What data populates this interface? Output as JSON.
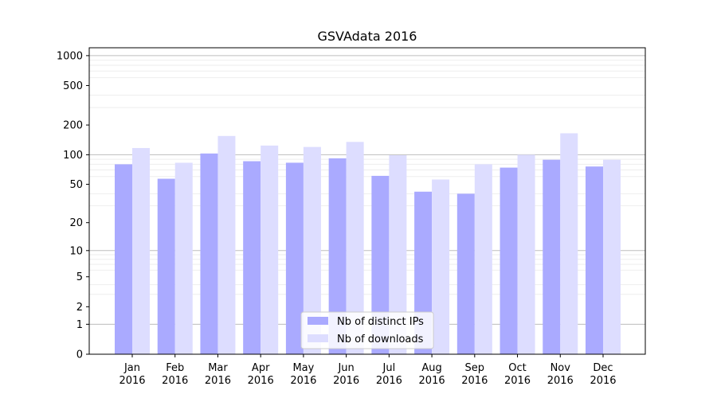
{
  "chart_data": {
    "type": "bar",
    "title": "GSVAdata 2016",
    "xlabel": "",
    "ylabel": "",
    "yscale": "log1p",
    "ylim": [
      0,
      1200
    ],
    "y_ticks": [
      0,
      1,
      2,
      5,
      10,
      20,
      50,
      100,
      200,
      500,
      1000
    ],
    "categories": [
      [
        "Jan",
        "2016"
      ],
      [
        "Feb",
        "2016"
      ],
      [
        "Mar",
        "2016"
      ],
      [
        "Apr",
        "2016"
      ],
      [
        "May",
        "2016"
      ],
      [
        "Jun",
        "2016"
      ],
      [
        "Jul",
        "2016"
      ],
      [
        "Aug",
        "2016"
      ],
      [
        "Sep",
        "2016"
      ],
      [
        "Oct",
        "2016"
      ],
      [
        "Nov",
        "2016"
      ],
      [
        "Dec",
        "2016"
      ]
    ],
    "series": [
      {
        "name": "Nb of distinct IPs",
        "color": "#aaaaff",
        "values": [
          80,
          57,
          103,
          86,
          83,
          92,
          61,
          42,
          40,
          74,
          89,
          76
        ]
      },
      {
        "name": "Nb of downloads",
        "color": "#ddddff",
        "values": [
          117,
          83,
          155,
          124,
          120,
          135,
          99,
          56,
          80,
          100,
          165,
          89
        ]
      }
    ],
    "legend": "lower-center",
    "grid": true
  }
}
